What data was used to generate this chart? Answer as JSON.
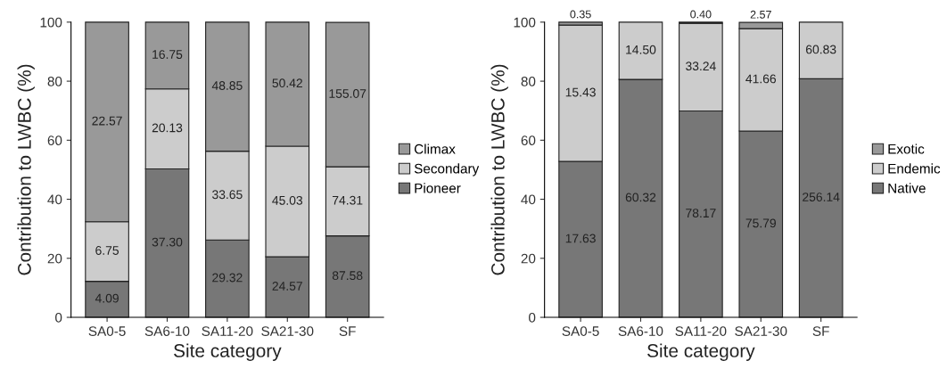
{
  "chart_data": [
    {
      "type": "bar",
      "stacked": true,
      "xlabel": "Site category",
      "ylabel": "Contribution to LWBC (%)",
      "categories": [
        "SA0-5",
        "SA6-10",
        "SA11-20",
        "SA21-30",
        "SF"
      ],
      "ylim": [
        0,
        100
      ],
      "yticks": [
        0,
        20,
        40,
        60,
        80,
        100
      ],
      "grid": false,
      "legend": "right",
      "series": [
        {
          "name": "Pioneer",
          "color": "#777777",
          "values": [
            12.2,
            50.3,
            26.2,
            20.5,
            27.6
          ]
        },
        {
          "name": "Secondary",
          "color": "#cccccc",
          "values": [
            20.2,
            27.1,
            30.1,
            37.5,
            23.4
          ]
        },
        {
          "name": "Climax",
          "color": "#999999",
          "values": [
            67.6,
            22.6,
            43.7,
            42.0,
            48.9
          ]
        }
      ],
      "annotations": [
        "4.09",
        "37.30",
        "29.32",
        "24.57",
        "87.58",
        "6.75",
        "20.13",
        "33.65",
        "45.03",
        "74.31",
        "22.57",
        "16.75",
        "48.85",
        "50.42",
        "155.07"
      ]
    },
    {
      "type": "bar",
      "stacked": true,
      "xlabel": "Site category",
      "ylabel": "Contribution to LWBC (%)",
      "categories": [
        "SA0-5",
        "SA6-10",
        "SA11-20",
        "SA21-30",
        "SF"
      ],
      "ylim": [
        0,
        100
      ],
      "yticks": [
        0,
        20,
        40,
        60,
        80,
        100
      ],
      "grid": false,
      "legend": "right",
      "series": [
        {
          "name": "Native",
          "color": "#777777",
          "values": [
            52.8,
            80.6,
            69.9,
            63.1,
            80.8
          ]
        },
        {
          "name": "Endemic",
          "color": "#cccccc",
          "values": [
            46.2,
            19.4,
            29.7,
            34.7,
            19.2
          ]
        },
        {
          "name": "Exotic",
          "color": "#999999",
          "values": [
            1.0,
            null,
            0.4,
            2.1,
            null
          ]
        }
      ],
      "annotations": [
        "17.63",
        "60.32",
        "78.17",
        "75.79",
        "256.14",
        "15.43",
        "14.50",
        "33.24",
        "41.66",
        "60.83",
        "0.35",
        "0.40",
        "2.57"
      ]
    }
  ]
}
